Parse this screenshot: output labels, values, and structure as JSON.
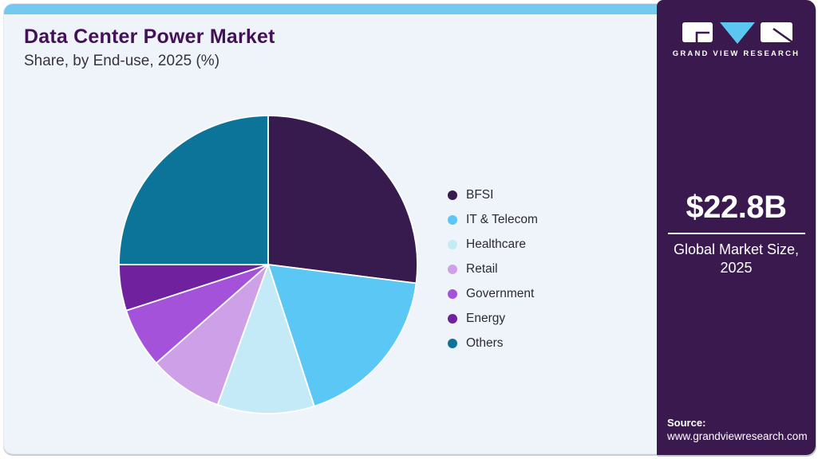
{
  "header": {
    "title": "Data Center Power Market",
    "subtitle": "Share, by End-use, 2025 (%)"
  },
  "chart_data": {
    "type": "pie",
    "title": "Data Center Power Market Share, by End-use, 2025 (%)",
    "unit": "%",
    "start_angle": "12 o'clock, clockwise",
    "legend_position": "right",
    "series": [
      {
        "label": "BFSI",
        "value": 27,
        "color": "#371a4e"
      },
      {
        "label": "IT & Telecom",
        "value": 18,
        "color": "#5bc7f5"
      },
      {
        "label": "Healthcare",
        "value": 10.5,
        "color": "#c4eaf8"
      },
      {
        "label": "Retail",
        "value": 8,
        "color": "#cda0e8"
      },
      {
        "label": "Government",
        "value": 6.5,
        "color": "#a452da"
      },
      {
        "label": "Energy",
        "value": 5,
        "color": "#6f219e"
      },
      {
        "label": "Others",
        "value": 25,
        "color": "#0d7499"
      }
    ]
  },
  "sidebar": {
    "logo_text": "GRAND VIEW RESEARCH",
    "market_size": "$22.8B",
    "market_size_caption": "Global Market Size, 2025",
    "source_label": "Source:",
    "source_url": "www.grandviewresearch.com"
  },
  "colors": {
    "top_bar": "#74c9f0",
    "card_bg": "#eef4fa",
    "panel_bg": "#3a1a4e",
    "title_text": "#421158",
    "logo_triangle": "#5bc6f0",
    "slice_stroke": "#ffffff"
  }
}
